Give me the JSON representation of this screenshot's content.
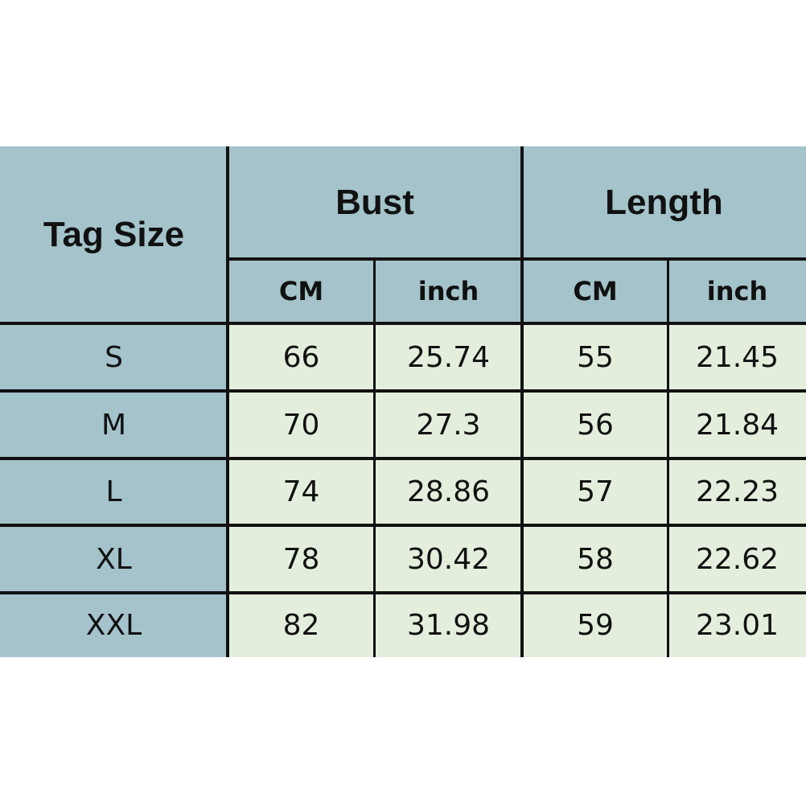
{
  "table": {
    "header": {
      "tag_size": "Tag Size",
      "groups": [
        "Bust",
        "Length"
      ],
      "units": [
        "CM",
        "inch",
        "CM",
        "inch"
      ]
    },
    "rows": [
      [
        "S",
        "66",
        "25.74",
        "55",
        "21.45"
      ],
      [
        "M",
        "70",
        "27.3",
        "56",
        "21.84"
      ],
      [
        "L",
        "74",
        "28.86",
        "57",
        "22.23"
      ],
      [
        "XL",
        "78",
        "30.42",
        "58",
        "22.62"
      ],
      [
        "XXL",
        "82",
        "31.98",
        "59",
        "23.01"
      ]
    ]
  }
}
